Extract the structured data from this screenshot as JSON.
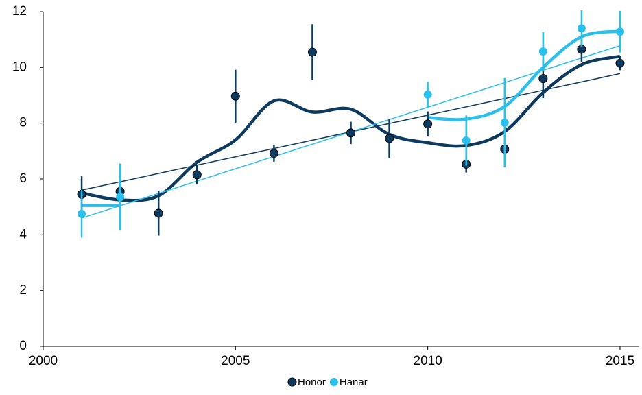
{
  "chart_data": {
    "type": "scatter",
    "x": [
      2001,
      2002,
      2003,
      2004,
      2005,
      2006,
      2007,
      2008,
      2009,
      2010,
      2011,
      2012,
      2013,
      2014,
      2015
    ],
    "xlim": [
      2000,
      2015.5
    ],
    "xticks": [
      2000,
      2005,
      2010,
      2015
    ],
    "ylim": [
      0,
      12
    ],
    "yticks": [
      0,
      2,
      4,
      6,
      8,
      10,
      12
    ],
    "grid": false,
    "legend": "bottom",
    "series": [
      {
        "name": "Honor",
        "color": "#0e3a5e",
        "values": [
          5.45,
          5.55,
          4.77,
          6.15,
          8.97,
          6.92,
          10.55,
          7.65,
          7.45,
          7.97,
          6.53,
          7.07,
          9.6,
          10.65,
          10.15
        ],
        "errors": [
          0.65,
          0.45,
          0.8,
          0.35,
          0.95,
          0.3,
          1.0,
          0.4,
          0.7,
          0.45,
          0.3,
          0.65,
          0.7,
          0.45,
          0.25
        ],
        "smooth": [
          5.5,
          5.25,
          5.4,
          6.6,
          7.4,
          8.8,
          8.4,
          8.5,
          7.6,
          7.3,
          7.2,
          7.7,
          9.1,
          10.1,
          10.4
        ],
        "trendline": {
          "x": [
            2001,
            2015
          ],
          "values": [
            5.6,
            9.78
          ]
        }
      },
      {
        "name": "Hanar",
        "color": "#2bbfec",
        "values": [
          4.75,
          5.35,
          null,
          null,
          null,
          null,
          null,
          null,
          null,
          9.03,
          7.38,
          8.02,
          10.57,
          11.4,
          11.28
        ],
        "errors": [
          0.85,
          1.2,
          null,
          null,
          null,
          null,
          null,
          null,
          null,
          0.45,
          0.9,
          1.6,
          0.7,
          0.65,
          0.75
        ],
        "smooth": [
          5.05,
          5.05,
          null,
          null,
          null,
          null,
          null,
          null,
          null,
          8.2,
          8.15,
          8.6,
          10.0,
          11.1,
          11.3
        ],
        "trendline": {
          "x": [
            2001,
            2015
          ],
          "values": [
            4.6,
            10.78
          ]
        }
      }
    ]
  }
}
